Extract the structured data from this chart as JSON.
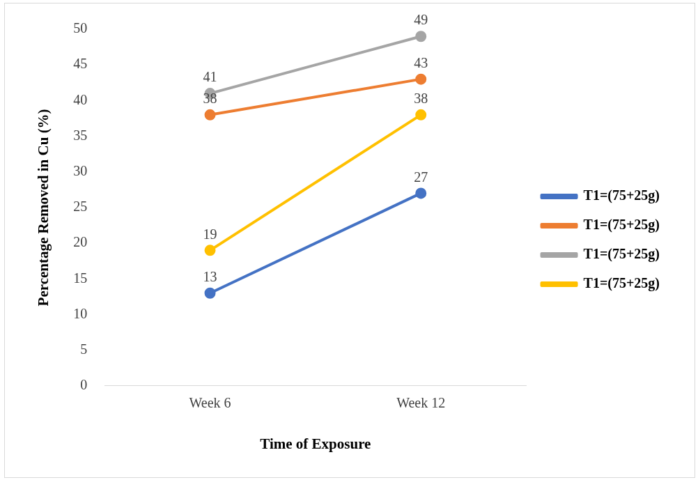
{
  "chart_data": {
    "type": "line",
    "xlabel": "Time of Exposure",
    "ylabel": "Percentage Removed in Cu (%)",
    "categories": [
      "Week 6",
      "Week 12"
    ],
    "series": [
      {
        "name": "T1=(75+25g)",
        "color": "#4472c4",
        "values": [
          13,
          27
        ]
      },
      {
        "name": "T1=(75+25g)",
        "color": "#ed7d31",
        "values": [
          38,
          43
        ]
      },
      {
        "name": "T1=(75+25g)",
        "color": "#a5a5a5",
        "values": [
          41,
          49
        ]
      },
      {
        "name": "T1=(75+25g)",
        "color": "#ffc000",
        "values": [
          19,
          38
        ]
      }
    ],
    "ylim": [
      0,
      50
    ],
    "yticks": [
      0,
      5,
      10,
      15,
      20,
      25,
      30,
      35,
      40,
      45,
      50
    ],
    "grid": false,
    "legend": "right",
    "marker": "circle",
    "line_style": "solid",
    "data_labels": true
  }
}
